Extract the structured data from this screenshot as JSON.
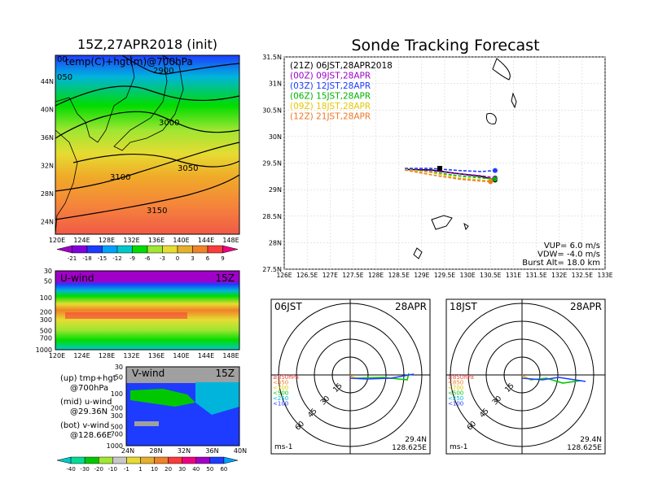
{
  "left_top": {
    "title": "15Z,27APR2018 (init)",
    "label": "temp(C)+hgt(m)@700hPa",
    "lat_ticks": [
      "44N",
      "40N",
      "36N",
      "32N",
      "28N",
      "24N"
    ],
    "lon_ticks": [
      "120E",
      "124E",
      "128E",
      "132E",
      "136E",
      "140E",
      "144E",
      "148E"
    ],
    "contour_labels": [
      "3000",
      "3050",
      "3100",
      "3150",
      "2900",
      "050",
      "00"
    ],
    "colorbar_ticks": [
      "-21",
      "-18",
      "-15",
      "-12",
      "-9",
      "-6",
      "-3",
      "0",
      "3",
      "6",
      "9"
    ],
    "colorbar_colors": [
      "#a000c8",
      "#8200dc",
      "#1e3cff",
      "#00a0ff",
      "#00c8c8",
      "#00dc00",
      "#a0e632",
      "#e6dc32",
      "#e6af2d",
      "#f08228",
      "#fa3c3c",
      "#f00082"
    ]
  },
  "left_mid": {
    "label": "U-wind",
    "time": "15Z",
    "p_ticks": [
      "30",
      "50",
      "100",
      "200",
      "300",
      "500",
      "700",
      "1000"
    ],
    "lon_ticks": [
      "120E",
      "124E",
      "128E",
      "132E",
      "136E",
      "140E",
      "144E",
      "148E"
    ]
  },
  "left_bot": {
    "label": "V-wind",
    "time": "15Z",
    "p_ticks": [
      "30",
      "50",
      "100",
      "200",
      "300",
      "500",
      "700",
      "1000"
    ],
    "lat_ticks": [
      "24N",
      "28N",
      "32N",
      "36N",
      "40N"
    ],
    "notes": [
      {
        "l1": "(up) tmp+hgt",
        "l2": "@700hPa"
      },
      {
        "l1": "(mid) u-wind",
        "l2": "@29.36N"
      },
      {
        "l1": "(bot) v-wind",
        "l2": "@128.66E"
      }
    ],
    "colorbar_ticks": [
      "-40",
      "-30",
      "-20",
      "-10",
      "-1",
      "1",
      "10",
      "20",
      "30",
      "40",
      "50",
      "60"
    ],
    "colorbar_colors": [
      "#00c8c8",
      "#00dc96",
      "#00c800",
      "#a0e632",
      "#c8c8c8",
      "#e6dc32",
      "#e6af2d",
      "#f08228",
      "#fa3c3c",
      "#f00082",
      "#a000c8",
      "#1e3cff",
      "#00a0ff"
    ]
  },
  "main": {
    "title": "Sonde Tracking Forecast",
    "lat_ticks": [
      "31.5N",
      "31N",
      "30.5N",
      "30N",
      "29.5N",
      "29N",
      "28.5N",
      "28N",
      "27.5N"
    ],
    "lon_ticks": [
      "126E",
      "126.5E",
      "127E",
      "127.5E",
      "128E",
      "128.5E",
      "129E",
      "129.5E",
      "130E",
      "130.5E",
      "131E",
      "131.5E",
      "132E",
      "132.5E",
      "133E"
    ],
    "legend": [
      {
        "text": "(21Z)  06JST,28APR2018",
        "color": "#000000"
      },
      {
        "text": "(00Z)  09JST,28APR",
        "color": "#a000c8"
      },
      {
        "text": "(03Z)  12JST,28APR",
        "color": "#1e3cff"
      },
      {
        "text": "(06Z)  15JST,28APR",
        "color": "#00b400"
      },
      {
        "text": "(09Z)  18JST,28APR",
        "color": "#e6c800"
      },
      {
        "text": "(12Z)  21JST,28APR",
        "color": "#f07828"
      }
    ],
    "params": [
      "VUP= 6.0 m/s",
      "VDW= -4.0 m/s",
      "Burst Alt= 18.0 km"
    ]
  },
  "hodo_left": {
    "time": "06JST",
    "date": "28APR",
    "rings": [
      "15",
      "30",
      "45",
      "60"
    ],
    "unit": "ms-1",
    "lat": "29.4N",
    "lon": "128.625E"
  },
  "hodo_right": {
    "time": "18JST",
    "date": "28APR",
    "rings": [
      "15",
      "30",
      "45",
      "60"
    ],
    "unit": "ms-1",
    "lat": "29.4N",
    "lon": "128.625E"
  },
  "hodo_legend": [
    {
      "text": "≥850hPa",
      "color": "#fa3c3c"
    },
    {
      "text": "<850",
      "color": "#f08228"
    },
    {
      "text": "<700",
      "color": "#e6c800"
    },
    {
      "text": "<500",
      "color": "#00c800"
    },
    {
      "text": "<250",
      "color": "#00b4dc"
    },
    {
      "text": "<100",
      "color": "#1e3cff"
    }
  ],
  "chart_data": [
    {
      "type": "line",
      "title": "Sonde Tracking Forecast",
      "xlim": [
        126,
        133
      ],
      "ylim": [
        27.5,
        31.5
      ],
      "series": [
        {
          "name": "(21Z)  06JST,28APR2018",
          "x": [
            128.63,
            129.2,
            129.8,
            130.3,
            130.6
          ],
          "y": [
            29.38,
            29.37,
            29.3,
            29.25,
            29.18
          ]
        },
        {
          "name": "(00Z)  09JST,28APR",
          "x": [
            128.63,
            129.2,
            129.8,
            130.3,
            130.6
          ],
          "y": [
            29.38,
            29.36,
            29.3,
            29.26,
            29.22
          ]
        },
        {
          "name": "(03Z)  12JST,28APR",
          "x": [
            128.63,
            129.2,
            129.8,
            130.3,
            130.6
          ],
          "y": [
            29.4,
            29.4,
            29.36,
            29.34,
            29.36
          ]
        },
        {
          "name": "(06Z)  15JST,28APR",
          "x": [
            128.63,
            129.2,
            129.8,
            130.3,
            130.6
          ],
          "y": [
            29.38,
            29.33,
            29.26,
            29.22,
            29.2
          ]
        },
        {
          "name": "(09Z)  18JST,28APR",
          "x": [
            128.63,
            129.2,
            129.8,
            130.3,
            130.5
          ],
          "y": [
            29.38,
            29.32,
            29.22,
            29.18,
            29.16
          ]
        },
        {
          "name": "(12Z)  21JST,28APR",
          "x": [
            128.63,
            129.2,
            129.8,
            130.3,
            130.5
          ],
          "y": [
            29.37,
            29.28,
            29.2,
            29.16,
            29.15
          ]
        }
      ]
    }
  ]
}
